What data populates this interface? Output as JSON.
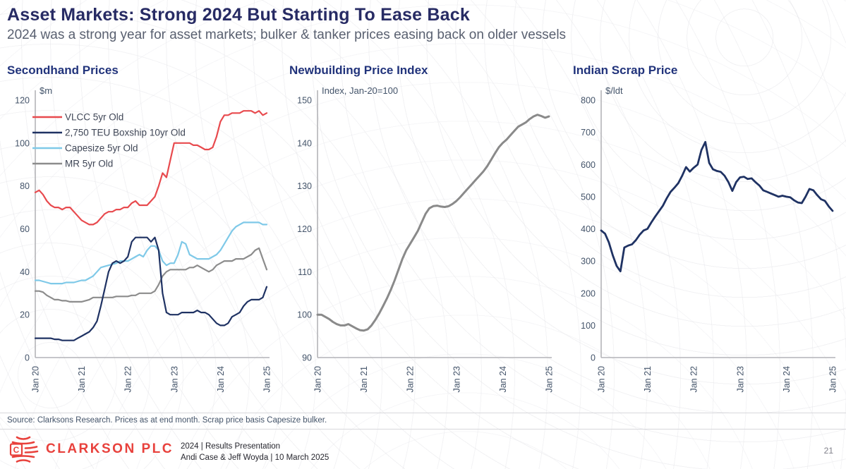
{
  "slide": {
    "title": "Asset Markets: Strong 2024 But Starting To Ease Back",
    "subtitle": "2024 was a strong year for asset markets; bulker & tanker prices easing back on older vessels",
    "page_number": "21",
    "source_note": "Source: Clarksons Research. Prices as at end month. Scrap price basis Capesize bulker."
  },
  "footer": {
    "company": "CLARKSON PLC",
    "presentation": "2024 | Results Presentation",
    "authors": "Andi Case & Jeff Woyda | 10 March 2025",
    "logo_icon": "clarkson-globe-c-icon",
    "logo_color": "#e8413c"
  },
  "colors": {
    "title_navy": "#272b64",
    "chart_title_blue": "#21337b",
    "axis_gray": "#b4b4b8",
    "tick_text": "#44546a",
    "vlcc_red": "#e84a4e",
    "boxship_navy": "#1f3263",
    "capesize_blue": "#7fc9e8",
    "mr_gray": "#8c8c8c",
    "newbuilding_gray": "#8a8a8a",
    "scrap_navy": "#1f3263"
  },
  "chart_data": [
    {
      "type": "line",
      "title": "Secondhand Prices",
      "unit_label": "$m",
      "ylim": [
        0,
        120
      ],
      "y_step": 20,
      "grid": false,
      "legend": true,
      "legend_position": "top-left",
      "x_tick_labels": [
        "Jan 20",
        "Jan 21",
        "Jan 22",
        "Jan 23",
        "Jan 24",
        "Jan 25"
      ],
      "x_frequency": "monthly",
      "series": [
        {
          "name": "VLCC 5yr Old",
          "color": "#e84a4e",
          "width": 2.2,
          "values": [
            77,
            78,
            76,
            73,
            71,
            70,
            70,
            69,
            70,
            70,
            68,
            66,
            64,
            63,
            62,
            62,
            63,
            65,
            67,
            68,
            68,
            69,
            69,
            70,
            70,
            72,
            73,
            71,
            71,
            71,
            73,
            75,
            80,
            86,
            84,
            92,
            100,
            100,
            100,
            100,
            100,
            99,
            99,
            98,
            97,
            97,
            98,
            103,
            110,
            113,
            113,
            114,
            114,
            114,
            115,
            115,
            115,
            114,
            115,
            113,
            114
          ]
        },
        {
          "name": "2,750 TEU Boxship 10yr Old",
          "color": "#1f3263",
          "width": 2.2,
          "values": [
            9,
            9,
            9,
            9,
            9,
            8.5,
            8.5,
            8,
            8,
            8,
            8,
            9,
            10,
            11,
            12,
            14,
            17,
            24,
            32,
            40,
            44,
            45,
            44,
            45,
            47,
            54,
            56,
            56,
            56,
            56,
            54,
            56,
            50,
            30,
            21,
            20,
            20,
            20,
            21,
            21,
            21,
            21,
            22,
            21,
            21,
            20,
            18,
            16,
            15,
            15,
            16,
            19,
            20,
            21,
            24,
            26,
            27,
            27,
            27,
            28,
            33
          ]
        },
        {
          "name": "Capesize 5yr Old",
          "color": "#7fc9e8",
          "width": 2.2,
          "values": [
            36,
            36,
            35.5,
            35,
            34.5,
            34.5,
            34.5,
            34.5,
            35,
            35,
            35,
            35.5,
            36,
            36,
            37,
            38,
            40,
            42,
            42.5,
            43,
            43.5,
            44,
            45,
            45,
            45,
            46,
            47,
            48,
            47,
            50,
            52,
            52,
            50,
            45,
            43,
            44,
            44,
            48,
            54,
            53,
            48,
            47,
            46,
            46,
            46,
            46,
            47,
            48,
            50,
            53,
            56,
            59,
            61,
            62,
            63,
            63,
            63,
            63,
            63,
            62,
            62
          ]
        },
        {
          "name": "MR 5yr Old",
          "color": "#8c8c8c",
          "width": 2.2,
          "values": [
            31,
            31,
            30.5,
            29,
            28,
            27,
            27,
            26.5,
            26.5,
            26,
            26,
            26,
            26,
            26.5,
            27,
            28,
            28,
            28,
            28,
            28,
            28,
            28.5,
            28.5,
            28.5,
            28.5,
            29,
            29,
            30,
            30,
            30,
            30,
            31,
            34,
            38,
            40,
            41,
            41,
            41,
            41,
            41,
            42,
            42,
            43,
            42,
            41,
            40,
            41,
            43,
            44,
            45,
            45,
            45,
            46,
            46,
            46,
            47,
            48,
            50,
            51,
            46,
            41
          ]
        }
      ]
    },
    {
      "type": "line",
      "title": "Newbuilding Price Index",
      "unit_label": "Index, Jan-20=100",
      "ylim": [
        90,
        150
      ],
      "y_step": 10,
      "grid": false,
      "legend": false,
      "x_tick_labels": [
        "Jan 20",
        "Jan 21",
        "Jan 22",
        "Jan 23",
        "Jan 24",
        "Jan 25"
      ],
      "x_frequency": "monthly",
      "series": [
        {
          "name": "Newbuilding Price Index",
          "color": "#8a8a8a",
          "width": 3,
          "values": [
            100,
            100,
            99.5,
            99,
            98.3,
            97.8,
            97.5,
            97.5,
            97.8,
            97.3,
            96.8,
            96.4,
            96.3,
            96.6,
            97.5,
            98.8,
            100.3,
            102,
            103.8,
            105.8,
            108,
            110.5,
            113,
            115,
            116.5,
            118,
            119.5,
            121.5,
            123.5,
            124.8,
            125.3,
            125.4,
            125.2,
            125.1,
            125.3,
            125.8,
            126.5,
            127.4,
            128.4,
            129.4,
            130.4,
            131.4,
            132.4,
            133.4,
            134.6,
            136.1,
            137.6,
            139,
            140,
            140.8,
            141.8,
            142.8,
            143.8,
            144.3,
            144.8,
            145.6,
            146.2,
            146.6,
            146.3,
            145.9,
            146.2
          ]
        }
      ]
    },
    {
      "type": "line",
      "title": "Indian Scrap Price",
      "unit_label": "$/ldt",
      "ylim": [
        0,
        800
      ],
      "y_step": 100,
      "grid": false,
      "legend": false,
      "x_tick_labels": [
        "Jan 20",
        "Jan 21",
        "Jan 22",
        "Jan 23",
        "Jan 24",
        "Jan 25"
      ],
      "x_frequency": "monthly",
      "series": [
        {
          "name": "Indian Scrap Price",
          "color": "#1f3263",
          "width": 2.8,
          "values": [
            395,
            385,
            358,
            318,
            285,
            268,
            342,
            348,
            352,
            365,
            382,
            395,
            400,
            420,
            438,
            455,
            472,
            495,
            515,
            528,
            542,
            565,
            592,
            578,
            590,
            600,
            645,
            670,
            605,
            585,
            580,
            577,
            565,
            545,
            518,
            545,
            560,
            562,
            555,
            557,
            545,
            535,
            520,
            515,
            510,
            505,
            500,
            503,
            500,
            498,
            489,
            482,
            480,
            500,
            524,
            520,
            505,
            492,
            487,
            470,
            456
          ]
        }
      ]
    }
  ]
}
